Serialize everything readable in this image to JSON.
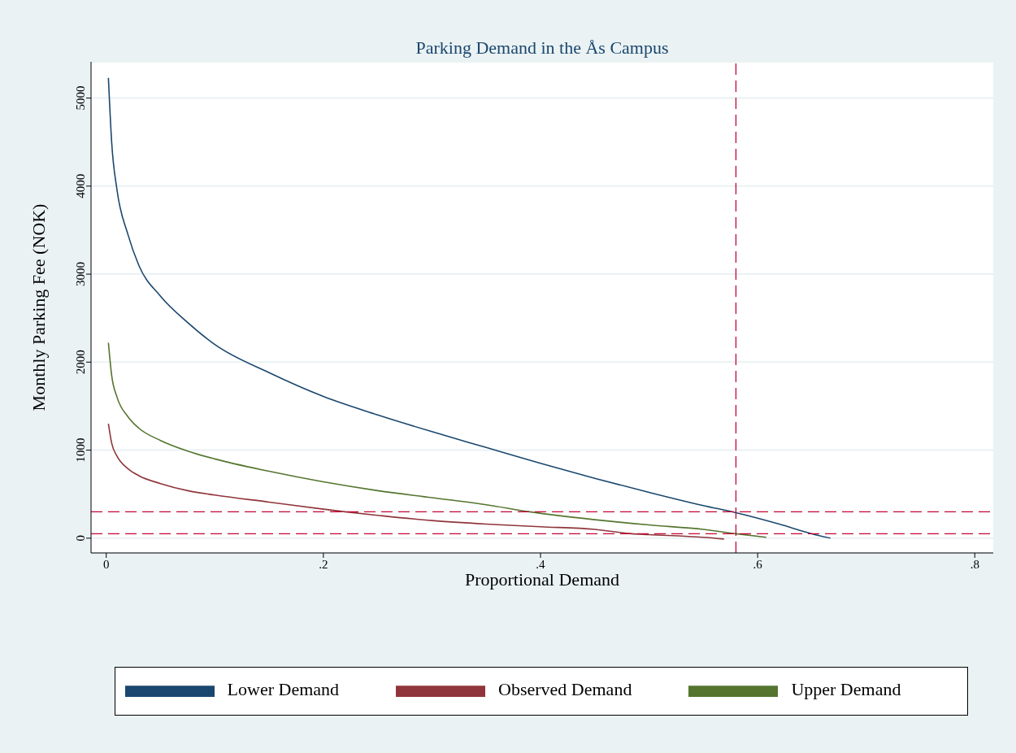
{
  "chart_data": {
    "type": "line",
    "title": "Parking Demand in the Ås Campus",
    "xlabel": "Proportional Demand",
    "ylabel": "Monthly Parking Fee (NOK)",
    "series": [
      {
        "name": "Lower Demand",
        "color": "#1a476f",
        "x": [
          0.002,
          0.005,
          0.01,
          0.02,
          0.03,
          0.05,
          0.075,
          0.1,
          0.15,
          0.2,
          0.25,
          0.3,
          0.35,
          0.4,
          0.45,
          0.5,
          0.55,
          0.58,
          0.62,
          0.65,
          0.667
        ],
        "values": [
          5230,
          4500,
          3950,
          3450,
          3100,
          2750,
          2450,
          2200,
          1880,
          1610,
          1400,
          1210,
          1030,
          850,
          680,
          520,
          370,
          290,
          160,
          50,
          0
        ]
      },
      {
        "name": "Observed Demand",
        "color": "#90353b",
        "x": [
          0.002,
          0.005,
          0.01,
          0.02,
          0.03,
          0.05,
          0.075,
          0.1,
          0.15,
          0.2,
          0.22,
          0.25,
          0.3,
          0.35,
          0.4,
          0.45,
          0.484,
          0.5,
          0.55,
          0.569
        ],
        "values": [
          1300,
          1080,
          930,
          790,
          710,
          620,
          540,
          490,
          410,
          330,
          300,
          260,
          200,
          160,
          130,
          100,
          50,
          40,
          10,
          -10
        ]
      },
      {
        "name": "Upper Demand",
        "color": "#55752f",
        "x": [
          0.002,
          0.005,
          0.01,
          0.02,
          0.03,
          0.05,
          0.075,
          0.1,
          0.15,
          0.2,
          0.25,
          0.3,
          0.35,
          0.39,
          0.45,
          0.5,
          0.55,
          0.58,
          0.608
        ],
        "values": [
          2220,
          1850,
          1600,
          1380,
          1250,
          1110,
          990,
          900,
          760,
          640,
          540,
          460,
          380,
          300,
          210,
          150,
          100,
          50,
          10
        ]
      }
    ],
    "xlim": [
      -0.014,
      0.817
    ],
    "xticks": [
      0,
      {
        "value": 0.2,
        "label": ".2"
      },
      {
        "value": 0.4,
        "label": ".4"
      },
      {
        "value": 0.6,
        "label": ".6"
      },
      {
        "value": 0.8,
        "label": ".8"
      }
    ],
    "ylim": [
      -168,
      5412
    ],
    "yticks": [
      0,
      1000,
      2000,
      3000,
      4000,
      5000
    ],
    "ref_lines": [
      {
        "axis": "x",
        "value": 0.58,
        "color": "#c10534",
        "line_style": "dashed"
      },
      {
        "axis": "y",
        "value": 300,
        "color": "#c10534",
        "line_style": "dashed"
      },
      {
        "axis": "y",
        "value": 50,
        "color": "#c10534",
        "line_style": "dashed"
      }
    ],
    "grid": "y",
    "legend": "bottom",
    "marker": "none",
    "line_style": "solid"
  }
}
